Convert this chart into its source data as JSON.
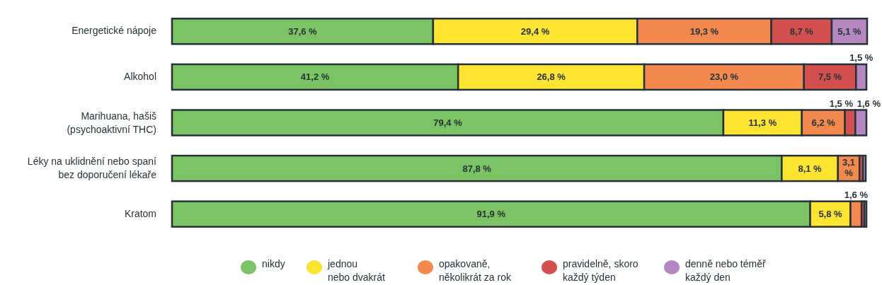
{
  "chart_data": {
    "type": "bar",
    "orientation": "horizontal",
    "stacked": true,
    "legend": "bottom",
    "categories": [
      "Energetické nápoje",
      "Alkohol",
      "Marihuana, hašiš\n(psychoaktivní THC)",
      "Léky na uklidnění nebo spaní\nbez doporučení lékaře",
      "Kratom"
    ],
    "series": [
      {
        "name": "nikdy",
        "color": "#7cc365",
        "values": [
          37.6,
          41.2,
          79.4,
          87.8,
          91.9
        ],
        "value_labels": [
          "37,6 %",
          "41,2 %",
          "79,4 %",
          "87,8 %",
          "91,9 %"
        ]
      },
      {
        "name": "jednou\nnebo dvakrát",
        "color": "#fde431",
        "values": [
          29.4,
          26.8,
          11.3,
          8.1,
          5.8
        ],
        "value_labels": [
          "29,4 %",
          "26,8 %",
          "11,3 %",
          "8,1 %",
          "5,8 %"
        ]
      },
      {
        "name": "opakovaně,\nněkolikrát za rok",
        "color": "#f4894f",
        "values": [
          19.3,
          23.0,
          6.2,
          3.1,
          1.6
        ],
        "value_labels": [
          "19,3 %",
          "23,0 %",
          "6,2 %",
          "3,1 %",
          "1,6 %"
        ]
      },
      {
        "name": "pravidelně, skoro\nkaždý týden",
        "color": "#d4504f",
        "values": [
          8.7,
          7.5,
          1.5,
          0.5,
          0.4
        ],
        "value_labels": [
          "8,7 %",
          "7,5 %",
          "1,5 %",
          null,
          null
        ]
      },
      {
        "name": "denně nebo téměř\nkaždý den",
        "color": "#b587c0",
        "values": [
          5.1,
          1.5,
          1.6,
          0.4,
          0.3
        ],
        "value_labels": [
          "5,1 %",
          "1,5 %",
          "1,6 %",
          null,
          null
        ]
      }
    ]
  }
}
